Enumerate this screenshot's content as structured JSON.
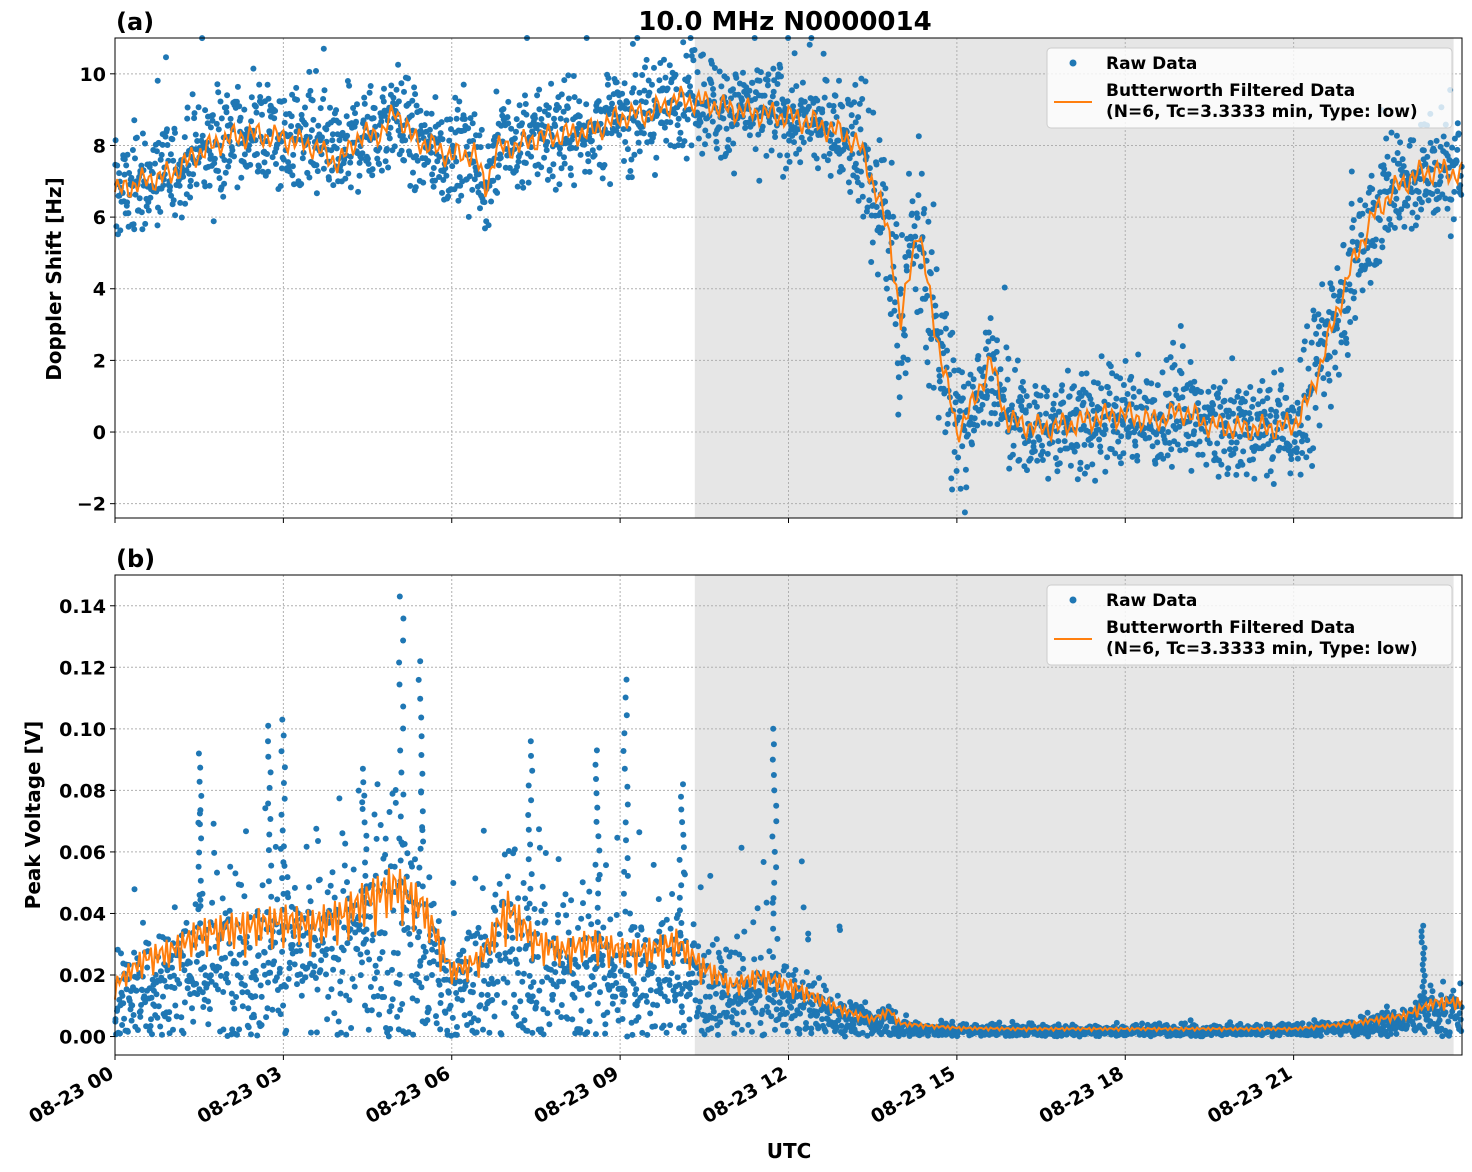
{
  "figure": {
    "title": "10.0 MHz N0000014",
    "xlabel": "UTC",
    "x_tick_labels": [
      "08-23 00",
      "08-23 03",
      "08-23 06",
      "08-23 09",
      "08-23 12",
      "08-23 15",
      "08-23 18",
      "08-23 21"
    ],
    "colors": {
      "raw": "#1f77b4",
      "filtered": "#ff7f0e",
      "shade": "#e6e6e6",
      "grid": "#b0b0b0"
    }
  },
  "legend": {
    "raw_label": "Raw Data",
    "filtered_label_line1": "Butterworth Filtered Data",
    "filtered_label_line2": "(N=6, Tc=3.3333 min, Type: low)"
  },
  "chart_data": [
    {
      "type": "scatter",
      "panel": "(a)",
      "ylabel": "Doppler Shift [Hz]",
      "xlim_hours": [
        0,
        24
      ],
      "ylim": [
        -2.4,
        11
      ],
      "y_ticks": [
        -2,
        0,
        2,
        4,
        6,
        8,
        10
      ],
      "y_tick_labels": [
        "−2",
        "0",
        "2",
        "4",
        "6",
        "8",
        "10"
      ],
      "grid": true,
      "legend_position": "top-right",
      "shaded_x_range_hours": [
        10.33,
        23.85
      ],
      "raw_spread_hz": 1.6,
      "filtered_series": {
        "name": "Butterworth Filtered Data",
        "x_hours": [
          0,
          0.5,
          1,
          1.5,
          2,
          2.5,
          3,
          3.5,
          4,
          4.3,
          4.8,
          5.0,
          5.3,
          5.6,
          6.0,
          6.4,
          6.6,
          6.8,
          7.2,
          7.5,
          8.0,
          8.5,
          9.0,
          9.5,
          9.8,
          10.0,
          10.5,
          11.0,
          11.5,
          12.0,
          12.5,
          13.0,
          13.3,
          13.6,
          13.8,
          14.0,
          14.3,
          14.6,
          14.8,
          15.0,
          15.3,
          15.6,
          15.9,
          16.2,
          16.5,
          17.0,
          17.5,
          18.0,
          18.5,
          19.0,
          19.5,
          20.0,
          20.5,
          21.0,
          21.3,
          21.6,
          22.0,
          22.4,
          22.8,
          23.2,
          23.6,
          24.0
        ],
        "y_hz": [
          6.7,
          7.0,
          7.2,
          7.8,
          8.2,
          8.3,
          8.2,
          8.0,
          7.5,
          8.2,
          8.4,
          9.0,
          8.2,
          8.0,
          7.7,
          7.8,
          6.8,
          7.9,
          8.0,
          8.2,
          8.3,
          8.4,
          8.8,
          8.9,
          9.1,
          9.3,
          9.2,
          9.0,
          8.9,
          8.8,
          8.6,
          8.3,
          7.9,
          6.5,
          5.5,
          3.0,
          5.8,
          3.0,
          1.5,
          0.0,
          0.8,
          2.0,
          0.3,
          0.2,
          0.1,
          0.2,
          0.4,
          0.5,
          0.3,
          0.6,
          0.2,
          0.1,
          0.1,
          0.2,
          1.0,
          2.5,
          4.5,
          6.0,
          6.8,
          7.2,
          7.3,
          7.2
        ]
      }
    },
    {
      "type": "scatter",
      "panel": "(b)",
      "ylabel": "Peak Voltage [V]",
      "xlim_hours": [
        0,
        24
      ],
      "ylim": [
        -0.006,
        0.15
      ],
      "y_ticks": [
        0.0,
        0.02,
        0.04,
        0.06,
        0.08,
        0.1,
        0.12,
        0.14
      ],
      "y_tick_labels": [
        "0.00",
        "0.02",
        "0.04",
        "0.06",
        "0.08",
        "0.10",
        "0.12",
        "0.14"
      ],
      "grid": true,
      "legend_position": "top-right",
      "shaded_x_range_hours": [
        10.33,
        23.85
      ],
      "filtered_series": {
        "name": "Butterworth Filtered Data",
        "x_hours": [
          0,
          0.5,
          1,
          1.5,
          2,
          2.5,
          3,
          3.5,
          4,
          4.5,
          5.0,
          5.5,
          6.0,
          6.5,
          7.0,
          7.5,
          8.0,
          8.5,
          9.0,
          9.5,
          10.0,
          10.5,
          11.0,
          11.5,
          12.0,
          12.5,
          13.0,
          13.5,
          13.8,
          14.0,
          14.5,
          15.0,
          16,
          17,
          18,
          19,
          20,
          21,
          22,
          22.5,
          23.0,
          23.5,
          24.0
        ],
        "y_v": [
          0.012,
          0.018,
          0.02,
          0.024,
          0.025,
          0.026,
          0.027,
          0.026,
          0.028,
          0.032,
          0.035,
          0.03,
          0.015,
          0.018,
          0.03,
          0.022,
          0.02,
          0.022,
          0.02,
          0.02,
          0.022,
          0.016,
          0.012,
          0.014,
          0.012,
          0.009,
          0.006,
          0.004,
          0.006,
          0.003,
          0.0025,
          0.002,
          0.0018,
          0.0018,
          0.0018,
          0.0018,
          0.0018,
          0.0018,
          0.003,
          0.004,
          0.005,
          0.008,
          0.008
        ]
      },
      "spikes": [
        {
          "x_hours": 1.5,
          "y_v": 0.092
        },
        {
          "x_hours": 2.75,
          "y_v": 0.101
        },
        {
          "x_hours": 3.0,
          "y_v": 0.103
        },
        {
          "x_hours": 4.45,
          "y_v": 0.087
        },
        {
          "x_hours": 5.1,
          "y_v": 0.143
        },
        {
          "x_hours": 5.45,
          "y_v": 0.122
        },
        {
          "x_hours": 7.4,
          "y_v": 0.096
        },
        {
          "x_hours": 8.6,
          "y_v": 0.093
        },
        {
          "x_hours": 9.1,
          "y_v": 0.116
        },
        {
          "x_hours": 10.1,
          "y_v": 0.082
        },
        {
          "x_hours": 11.75,
          "y_v": 0.1
        },
        {
          "x_hours": 23.3,
          "y_v": 0.036
        }
      ]
    }
  ]
}
